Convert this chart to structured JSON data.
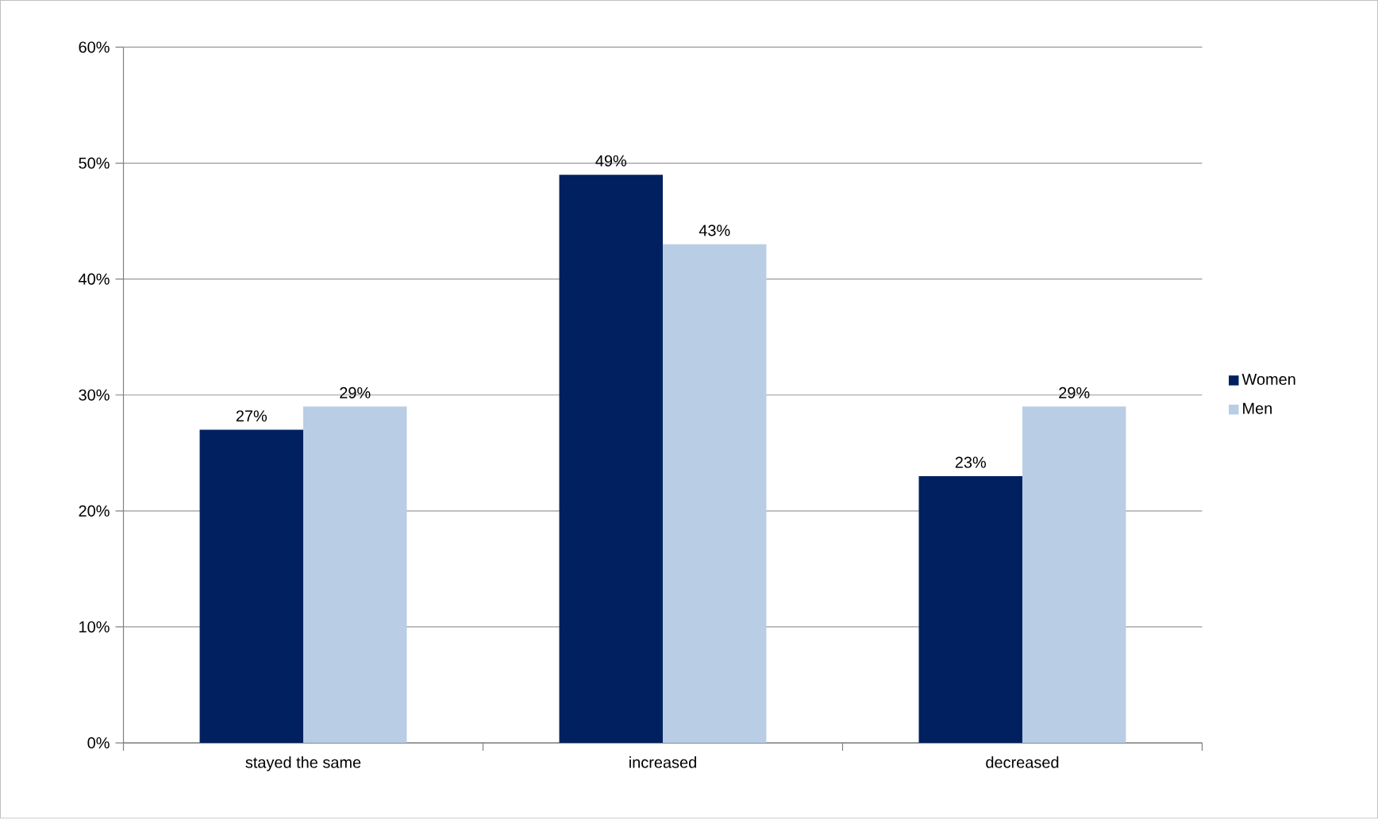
{
  "chart_data": {
    "type": "bar",
    "categories": [
      "stayed the same",
      "increased",
      "decreased"
    ],
    "series": [
      {
        "name": "Women",
        "color": "#002060",
        "values": [
          27,
          49,
          23
        ],
        "value_labels": [
          "27%",
          "49%",
          "23%"
        ]
      },
      {
        "name": "Men",
        "color": "#b9cde5",
        "values": [
          29,
          43,
          29
        ],
        "value_labels": [
          "29%",
          "43%",
          "29%"
        ]
      }
    ],
    "ylim": [
      0,
      60
    ],
    "yticks": [
      {
        "value": 0,
        "label": "0%"
      },
      {
        "value": 10,
        "label": "10%"
      },
      {
        "value": 20,
        "label": "20%"
      },
      {
        "value": 30,
        "label": "30%"
      },
      {
        "value": 40,
        "label": "40%"
      },
      {
        "value": 50,
        "label": "50%"
      },
      {
        "value": 60,
        "label": "60%"
      }
    ],
    "grid": "y",
    "legend": "right"
  }
}
